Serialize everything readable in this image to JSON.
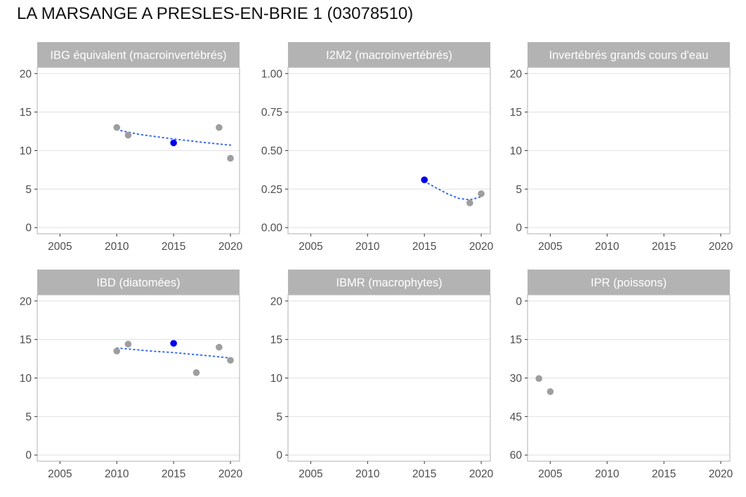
{
  "title": "LA MARSANGE A PRESLES-EN-BRIE 1 (03078510)",
  "colors": {
    "strip": "#b3b3b3",
    "panel_border": "#bdbdbd",
    "grid": "#e6e6e6",
    "point": "#9e9e9e",
    "highlight": "#0000ee",
    "trend": "#3366ff",
    "tick_label": "#4d4d4d"
  },
  "chart_data": [
    {
      "type": "scatter",
      "title": "IBG équivalent (macroinvertébrés)",
      "xlim": [
        2003,
        2020.8
      ],
      "xticks": [
        2005,
        2010,
        2015,
        2020
      ],
      "ylim": [
        -0.8,
        20.8
      ],
      "yticks": [
        0,
        5,
        10,
        15,
        20
      ],
      "yticklabels": [
        "0",
        "5",
        "10",
        "15",
        "20"
      ],
      "reverse_y": false,
      "points": [
        {
          "x": 2010,
          "y": 13
        },
        {
          "x": 2011,
          "y": 12
        },
        {
          "x": 2015,
          "y": 11,
          "highlight": true
        },
        {
          "x": 2019,
          "y": 13
        },
        {
          "x": 2020,
          "y": 9
        }
      ],
      "trend": [
        {
          "x": 2010,
          "y": 12.7
        },
        {
          "x": 2012,
          "y": 12.1
        },
        {
          "x": 2015,
          "y": 11.5
        },
        {
          "x": 2018,
          "y": 11.0
        },
        {
          "x": 2020,
          "y": 10.7
        }
      ]
    },
    {
      "type": "scatter",
      "title": "I2M2 (macroinvertébrés)",
      "xlim": [
        2003,
        2020.8
      ],
      "xticks": [
        2005,
        2010,
        2015,
        2020
      ],
      "ylim": [
        -0.04,
        1.04
      ],
      "yticks": [
        0,
        0.25,
        0.5,
        0.75,
        1.0
      ],
      "yticklabels": [
        "0.00",
        "0.25",
        "0.50",
        "0.75",
        "1.00"
      ],
      "reverse_y": false,
      "points": [
        {
          "x": 2015,
          "y": 0.31,
          "highlight": true
        },
        {
          "x": 2019,
          "y": 0.16
        },
        {
          "x": 2020,
          "y": 0.22
        }
      ],
      "trend": [
        {
          "x": 2015,
          "y": 0.3
        },
        {
          "x": 2016,
          "y": 0.26
        },
        {
          "x": 2017,
          "y": 0.22
        },
        {
          "x": 2018,
          "y": 0.19
        },
        {
          "x": 2019,
          "y": 0.18
        },
        {
          "x": 2020,
          "y": 0.2
        }
      ]
    },
    {
      "type": "scatter",
      "title": "Invertébrés grands cours d'eau",
      "xlim": [
        2003,
        2020.8
      ],
      "xticks": [
        2005,
        2010,
        2015,
        2020
      ],
      "ylim": [
        -0.8,
        20.8
      ],
      "yticks": [
        0,
        5,
        10,
        15,
        20
      ],
      "yticklabels": [
        "0",
        "5",
        "10",
        "15",
        "20"
      ],
      "reverse_y": false,
      "points": [],
      "trend": []
    },
    {
      "type": "scatter",
      "title": "IBD (diatomées)",
      "xlim": [
        2003,
        2020.8
      ],
      "xticks": [
        2005,
        2010,
        2015,
        2020
      ],
      "ylim": [
        -0.8,
        20.8
      ],
      "yticks": [
        0,
        5,
        10,
        15,
        20
      ],
      "yticklabels": [
        "0",
        "5",
        "10",
        "15",
        "20"
      ],
      "reverse_y": false,
      "points": [
        {
          "x": 2010,
          "y": 13.5
        },
        {
          "x": 2011,
          "y": 14.4
        },
        {
          "x": 2015,
          "y": 14.5,
          "highlight": true
        },
        {
          "x": 2017,
          "y": 10.7
        },
        {
          "x": 2019,
          "y": 14.0
        },
        {
          "x": 2020,
          "y": 12.3
        }
      ],
      "trend": [
        {
          "x": 2010,
          "y": 13.9
        },
        {
          "x": 2013,
          "y": 13.5
        },
        {
          "x": 2015,
          "y": 13.3
        },
        {
          "x": 2018,
          "y": 12.9
        },
        {
          "x": 2020,
          "y": 12.6
        }
      ]
    },
    {
      "type": "scatter",
      "title": "IBMR (macrophytes)",
      "xlim": [
        2003,
        2020.8
      ],
      "xticks": [
        2005,
        2010,
        2015,
        2020
      ],
      "ylim": [
        -0.8,
        20.8
      ],
      "yticks": [
        0,
        5,
        10,
        15,
        20
      ],
      "yticklabels": [
        "0",
        "5",
        "10",
        "15",
        "20"
      ],
      "reverse_y": false,
      "points": [],
      "trend": []
    },
    {
      "type": "scatter",
      "title": "IPR (poissons)",
      "xlim": [
        2003,
        2020.8
      ],
      "xticks": [
        2005,
        2010,
        2015,
        2020
      ],
      "ylim": [
        -2.4,
        62.4
      ],
      "yticks": [
        0,
        15,
        30,
        45,
        60
      ],
      "yticklabels": [
        "0",
        "15",
        "30",
        "45",
        "60"
      ],
      "reverse_y": true,
      "points": [
        {
          "x": 2004,
          "y": 30.2
        },
        {
          "x": 2005,
          "y": 35.3
        }
      ],
      "trend": []
    }
  ]
}
